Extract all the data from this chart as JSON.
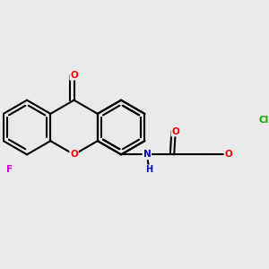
{
  "background_color": "#eaeaea",
  "bond_color": "#000000",
  "atom_colors": {
    "O": "#ff0000",
    "N": "#0000cc",
    "F": "#cc00cc",
    "Cl": "#00aa00",
    "C": "#000000"
  },
  "figsize": [
    3.0,
    3.0
  ],
  "dpi": 100
}
